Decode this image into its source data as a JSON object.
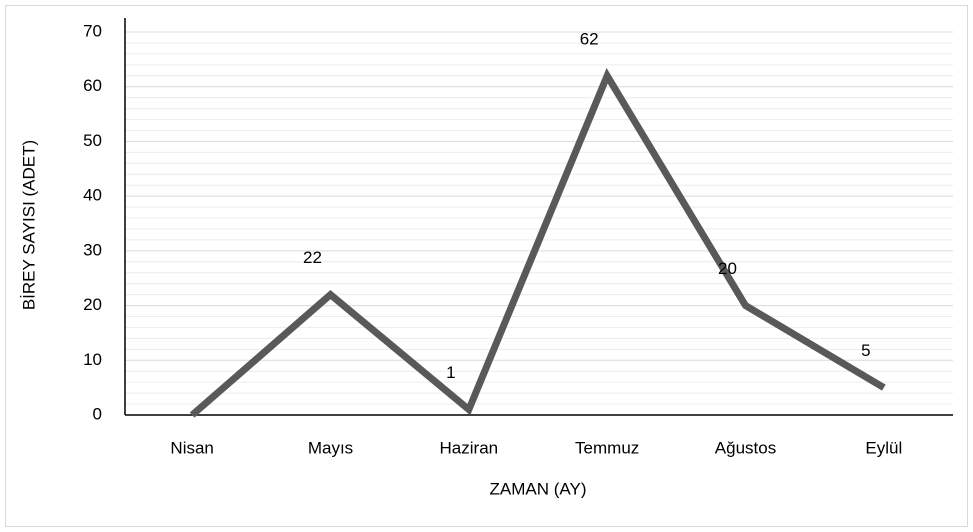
{
  "chart_data": {
    "type": "line",
    "categories": [
      "Nisan",
      "Mayıs",
      "Haziran",
      "Temmuz",
      "Ağustos",
      "Eylül"
    ],
    "series": [
      {
        "color": "#595959",
        "values": [
          0,
          22,
          1,
          62,
          20,
          5
        ],
        "value_labels": [
          null,
          "22",
          "1",
          "62",
          "20",
          "5"
        ]
      }
    ],
    "ylim": [
      0,
      70
    ],
    "yticks": [
      0,
      10,
      20,
      30,
      40,
      50,
      60,
      70
    ],
    "grid": true,
    "xlabel": "ZAMAN (AY)",
    "ylabel": "BİREY SAYISI (ADET)"
  }
}
